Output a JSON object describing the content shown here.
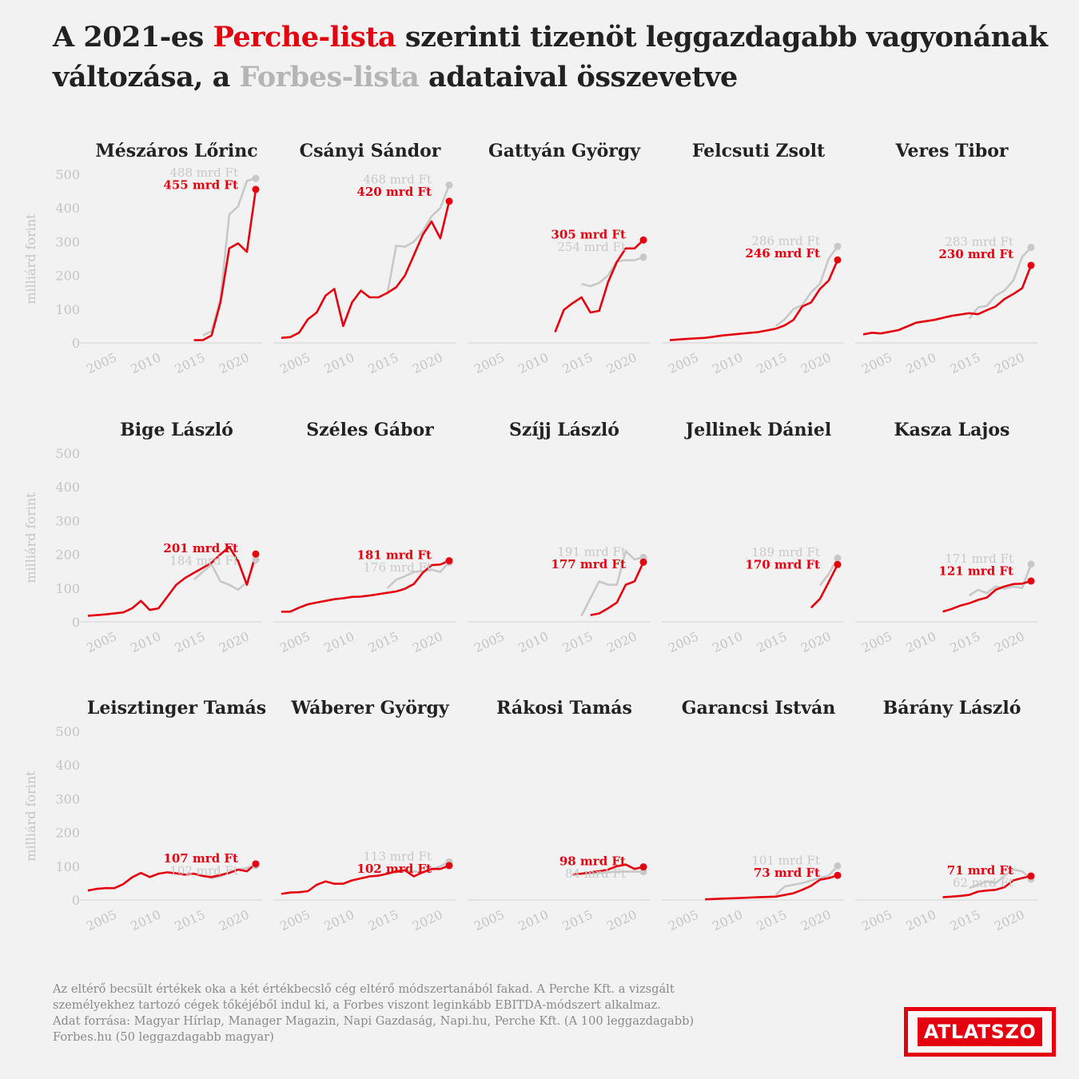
{
  "title": {
    "part1": "A 2021-es ",
    "perche": "Perche-lista",
    "part2": " szerinti tizenöt leggazdagabb vagyonának változása, a ",
    "forbes": "Forbes-lista",
    "part3": " adataival összevetve"
  },
  "colors": {
    "perche": "#e5000f",
    "forbes": "#c8c8c8",
    "axis_text": "#c4c4c4",
    "title": "#222222"
  },
  "yaxis_label": "milliárd forint",
  "yticks": [
    0,
    100,
    200,
    300,
    400,
    500
  ],
  "xticks": [
    2005,
    2010,
    2015,
    2020
  ],
  "chart_data": [
    {
      "type": "line",
      "name": "Mészáros Lőrinc",
      "perche_label": "455 mrd Ft",
      "forbes_label": "488 mrd Ft",
      "perche": [
        [
          2014,
          8
        ],
        [
          2015,
          8
        ],
        [
          2016,
          22
        ],
        [
          2017,
          120
        ],
        [
          2018,
          280
        ],
        [
          2019,
          295
        ],
        [
          2020,
          270
        ],
        [
          2021,
          455
        ]
      ],
      "forbes": [
        [
          2015,
          22
        ],
        [
          2016,
          35
        ],
        [
          2017,
          130
        ],
        [
          2018,
          380
        ],
        [
          2019,
          405
        ],
        [
          2020,
          480
        ],
        [
          2021,
          488
        ]
      ]
    },
    {
      "type": "line",
      "name": "Csányi Sándor",
      "perche_label": "420 mrd Ft",
      "forbes_label": "468 mrd Ft",
      "perche": [
        [
          2002,
          15
        ],
        [
          2003,
          17
        ],
        [
          2004,
          30
        ],
        [
          2005,
          70
        ],
        [
          2006,
          90
        ],
        [
          2007,
          140
        ],
        [
          2008,
          160
        ],
        [
          2009,
          50
        ],
        [
          2010,
          120
        ],
        [
          2011,
          155
        ],
        [
          2012,
          135
        ],
        [
          2013,
          135
        ],
        [
          2014,
          148
        ],
        [
          2015,
          165
        ],
        [
          2016,
          200
        ],
        [
          2017,
          260
        ],
        [
          2018,
          320
        ],
        [
          2019,
          360
        ],
        [
          2020,
          310
        ],
        [
          2021,
          420
        ]
      ],
      "forbes": [
        [
          2014,
          145
        ],
        [
          2015,
          288
        ],
        [
          2016,
          285
        ],
        [
          2017,
          300
        ],
        [
          2018,
          330
        ],
        [
          2019,
          375
        ],
        [
          2020,
          400
        ],
        [
          2021,
          468
        ]
      ]
    },
    {
      "type": "line",
      "name": "Gattyán György",
      "perche_label": "305 mrd Ft",
      "forbes_label": "254 mrd Ft",
      "perche": [
        [
          2011,
          32
        ],
        [
          2012,
          98
        ],
        [
          2013,
          118
        ],
        [
          2014,
          135
        ],
        [
          2015,
          90
        ],
        [
          2016,
          95
        ],
        [
          2017,
          180
        ],
        [
          2018,
          240
        ],
        [
          2019,
          280
        ],
        [
          2020,
          280
        ],
        [
          2021,
          305
        ]
      ],
      "forbes": [
        [
          2014,
          175
        ],
        [
          2015,
          168
        ],
        [
          2016,
          178
        ],
        [
          2017,
          200
        ],
        [
          2018,
          242
        ],
        [
          2019,
          245
        ],
        [
          2020,
          245
        ],
        [
          2021,
          254
        ]
      ]
    },
    {
      "type": "line",
      "name": "Felcsuti Zsolt",
      "perche_label": "246 mrd Ft",
      "forbes_label": "286 mrd Ft",
      "perche": [
        [
          2002,
          8
        ],
        [
          2004,
          12
        ],
        [
          2006,
          15
        ],
        [
          2008,
          22
        ],
        [
          2010,
          27
        ],
        [
          2012,
          32
        ],
        [
          2014,
          42
        ],
        [
          2015,
          52
        ],
        [
          2016,
          68
        ],
        [
          2017,
          108
        ],
        [
          2018,
          120
        ],
        [
          2019,
          160
        ],
        [
          2020,
          185
        ],
        [
          2021,
          246
        ]
      ],
      "forbes": [
        [
          2014,
          50
        ],
        [
          2015,
          70
        ],
        [
          2016,
          100
        ],
        [
          2017,
          112
        ],
        [
          2018,
          150
        ],
        [
          2019,
          175
        ],
        [
          2020,
          250
        ],
        [
          2021,
          286
        ]
      ]
    },
    {
      "type": "line",
      "name": "Veres Tibor",
      "perche_label": "230 mrd Ft",
      "forbes_label": "283 mrd Ft",
      "perche": [
        [
          2002,
          25
        ],
        [
          2003,
          30
        ],
        [
          2004,
          28
        ],
        [
          2006,
          38
        ],
        [
          2008,
          60
        ],
        [
          2010,
          68
        ],
        [
          2012,
          80
        ],
        [
          2014,
          88
        ],
        [
          2015,
          85
        ],
        [
          2016,
          97
        ],
        [
          2017,
          108
        ],
        [
          2018,
          130
        ],
        [
          2019,
          145
        ],
        [
          2020,
          162
        ],
        [
          2021,
          230
        ]
      ],
      "forbes": [
        [
          2014,
          72
        ],
        [
          2015,
          105
        ],
        [
          2016,
          110
        ],
        [
          2017,
          140
        ],
        [
          2018,
          155
        ],
        [
          2019,
          185
        ],
        [
          2020,
          255
        ],
        [
          2021,
          283
        ]
      ]
    },
    {
      "type": "line",
      "name": "Bige László",
      "perche_label": "201 mrd Ft",
      "forbes_label": "184 mrd Ft",
      "perche": [
        [
          2002,
          18
        ],
        [
          2004,
          22
        ],
        [
          2006,
          28
        ],
        [
          2007,
          40
        ],
        [
          2008,
          62
        ],
        [
          2009,
          35
        ],
        [
          2010,
          40
        ],
        [
          2011,
          75
        ],
        [
          2012,
          110
        ],
        [
          2013,
          130
        ],
        [
          2014,
          145
        ],
        [
          2015,
          160
        ],
        [
          2016,
          175
        ],
        [
          2017,
          200
        ],
        [
          2018,
          222
        ],
        [
          2019,
          180
        ],
        [
          2020,
          110
        ],
        [
          2021,
          201
        ]
      ],
      "forbes": [
        [
          2014,
          125
        ],
        [
          2015,
          148
        ],
        [
          2016,
          170
        ],
        [
          2017,
          120
        ],
        [
          2018,
          110
        ],
        [
          2019,
          95
        ],
        [
          2020,
          118
        ],
        [
          2021,
          184
        ]
      ]
    },
    {
      "type": "line",
      "name": "Széles Gábor",
      "perche_label": "181 mrd Ft",
      "forbes_label": "176 mrd Ft",
      "perche": [
        [
          2002,
          30
        ],
        [
          2003,
          30
        ],
        [
          2004,
          42
        ],
        [
          2005,
          52
        ],
        [
          2006,
          57
        ],
        [
          2007,
          62
        ],
        [
          2008,
          67
        ],
        [
          2009,
          70
        ],
        [
          2010,
          74
        ],
        [
          2011,
          75
        ],
        [
          2012,
          78
        ],
        [
          2013,
          82
        ],
        [
          2014,
          86
        ],
        [
          2015,
          90
        ],
        [
          2016,
          98
        ],
        [
          2017,
          112
        ],
        [
          2018,
          145
        ],
        [
          2019,
          168
        ],
        [
          2020,
          170
        ],
        [
          2021,
          181
        ]
      ],
      "forbes": [
        [
          2014,
          100
        ],
        [
          2015,
          125
        ],
        [
          2016,
          135
        ],
        [
          2017,
          148
        ],
        [
          2018,
          150
        ],
        [
          2019,
          155
        ],
        [
          2020,
          148
        ],
        [
          2021,
          176
        ]
      ]
    },
    {
      "type": "line",
      "name": "Szíjj László",
      "perche_label": "177 mrd Ft",
      "forbes_label": "191 mrd Ft",
      "perche": [
        [
          2015,
          20
        ],
        [
          2016,
          25
        ],
        [
          2017,
          40
        ],
        [
          2018,
          57
        ],
        [
          2019,
          110
        ],
        [
          2020,
          120
        ],
        [
          2021,
          177
        ]
      ],
      "forbes": [
        [
          2014,
          18
        ],
        [
          2015,
          70
        ],
        [
          2016,
          120
        ],
        [
          2017,
          110
        ],
        [
          2018,
          110
        ],
        [
          2019,
          210
        ],
        [
          2020,
          185
        ],
        [
          2021,
          191
        ]
      ]
    },
    {
      "type": "line",
      "name": "Jellinek Dániel",
      "perche_label": "170 mrd Ft",
      "forbes_label": "189 mrd Ft",
      "perche": [
        [
          2018,
          42
        ],
        [
          2019,
          68
        ],
        [
          2020,
          118
        ],
        [
          2021,
          170
        ]
      ],
      "forbes": [
        [
          2019,
          108
        ],
        [
          2020,
          142
        ],
        [
          2021,
          189
        ]
      ]
    },
    {
      "type": "line",
      "name": "Kasza Lajos",
      "perche_label": "121 mrd Ft",
      "forbes_label": "171 mrd Ft",
      "perche": [
        [
          2011,
          30
        ],
        [
          2012,
          38
        ],
        [
          2013,
          48
        ],
        [
          2014,
          55
        ],
        [
          2015,
          65
        ],
        [
          2016,
          72
        ],
        [
          2017,
          95
        ],
        [
          2018,
          105
        ],
        [
          2019,
          112
        ],
        [
          2020,
          113
        ],
        [
          2021,
          121
        ]
      ],
      "forbes": [
        [
          2014,
          78
        ],
        [
          2015,
          95
        ],
        [
          2016,
          85
        ],
        [
          2017,
          105
        ],
        [
          2018,
          98
        ],
        [
          2019,
          105
        ],
        [
          2020,
          100
        ],
        [
          2021,
          171
        ]
      ]
    },
    {
      "type": "line",
      "name": "Leisztinger Tamás",
      "perche_label": "107 mrd Ft",
      "forbes_label": "102 mrd Ft",
      "perche": [
        [
          2002,
          28
        ],
        [
          2003,
          33
        ],
        [
          2004,
          35
        ],
        [
          2005,
          35
        ],
        [
          2006,
          47
        ],
        [
          2007,
          67
        ],
        [
          2008,
          80
        ],
        [
          2009,
          68
        ],
        [
          2010,
          78
        ],
        [
          2011,
          82
        ],
        [
          2012,
          79
        ],
        [
          2013,
          75
        ],
        [
          2014,
          78
        ],
        [
          2015,
          71
        ],
        [
          2016,
          68
        ],
        [
          2017,
          74
        ],
        [
          2018,
          80
        ],
        [
          2019,
          90
        ],
        [
          2020,
          85
        ],
        [
          2021,
          107
        ]
      ],
      "forbes": [
        [
          2014,
          78
        ],
        [
          2015,
          72
        ],
        [
          2016,
          65
        ],
        [
          2017,
          70
        ],
        [
          2018,
          82
        ],
        [
          2019,
          90
        ],
        [
          2020,
          95
        ],
        [
          2021,
          102
        ]
      ]
    },
    {
      "type": "line",
      "name": "Wáberer György",
      "perche_label": "102 mrd Ft",
      "forbes_label": "113 mrd Ft",
      "perche": [
        [
          2002,
          18
        ],
        [
          2003,
          22
        ],
        [
          2004,
          23
        ],
        [
          2005,
          26
        ],
        [
          2006,
          45
        ],
        [
          2007,
          55
        ],
        [
          2008,
          48
        ],
        [
          2009,
          48
        ],
        [
          2010,
          58
        ],
        [
          2011,
          64
        ],
        [
          2012,
          70
        ],
        [
          2013,
          72
        ],
        [
          2014,
          78
        ],
        [
          2015,
          85
        ],
        [
          2016,
          88
        ],
        [
          2017,
          70
        ],
        [
          2018,
          82
        ],
        [
          2019,
          92
        ],
        [
          2020,
          92
        ],
        [
          2021,
          102
        ]
      ],
      "forbes": [
        [
          2014,
          78
        ],
        [
          2015,
          82
        ],
        [
          2016,
          88
        ],
        [
          2017,
          85
        ],
        [
          2018,
          80
        ],
        [
          2019,
          90
        ],
        [
          2020,
          100
        ],
        [
          2021,
          113
        ]
      ]
    },
    {
      "type": "line",
      "name": "Rákosi Tamás",
      "perche_label": "98 mrd Ft",
      "forbes_label": "84 mrd Ft",
      "perche": [
        [
          2013,
          75
        ],
        [
          2014,
          78
        ],
        [
          2015,
          82
        ],
        [
          2016,
          85
        ],
        [
          2017,
          90
        ],
        [
          2018,
          100
        ],
        [
          2019,
          105
        ],
        [
          2020,
          92
        ],
        [
          2021,
          98
        ]
      ],
      "forbes": [
        [
          2014,
          78
        ],
        [
          2015,
          78
        ],
        [
          2016,
          80
        ],
        [
          2017,
          82
        ],
        [
          2018,
          84
        ],
        [
          2019,
          84
        ],
        [
          2020,
          84
        ],
        [
          2021,
          84
        ]
      ]
    },
    {
      "type": "line",
      "name": "Garancsi István",
      "perche_label": "73 mrd Ft",
      "forbes_label": "101 mrd Ft",
      "perche": [
        [
          2006,
          2
        ],
        [
          2008,
          4
        ],
        [
          2010,
          6
        ],
        [
          2012,
          8
        ],
        [
          2014,
          10
        ],
        [
          2015,
          15
        ],
        [
          2016,
          20
        ],
        [
          2017,
          30
        ],
        [
          2018,
          42
        ],
        [
          2019,
          60
        ],
        [
          2020,
          65
        ],
        [
          2021,
          73
        ]
      ],
      "forbes": [
        [
          2014,
          15
        ],
        [
          2015,
          40
        ],
        [
          2016,
          45
        ],
        [
          2017,
          50
        ],
        [
          2018,
          58
        ],
        [
          2019,
          65
        ],
        [
          2020,
          72
        ],
        [
          2021,
          101
        ]
      ]
    },
    {
      "type": "line",
      "name": "Bárány László",
      "perche_label": "71 mrd Ft",
      "forbes_label": "62 mrd Ft",
      "perche": [
        [
          2011,
          8
        ],
        [
          2012,
          10
        ],
        [
          2013,
          12
        ],
        [
          2014,
          15
        ],
        [
          2015,
          25
        ],
        [
          2016,
          28
        ],
        [
          2017,
          30
        ],
        [
          2018,
          38
        ],
        [
          2019,
          58
        ],
        [
          2020,
          65
        ],
        [
          2021,
          71
        ]
      ],
      "forbes": [
        [
          2014,
          35
        ],
        [
          2015,
          45
        ],
        [
          2016,
          55
        ],
        [
          2017,
          50
        ],
        [
          2018,
          72
        ],
        [
          2019,
          90
        ],
        [
          2020,
          85
        ],
        [
          2021,
          62
        ]
      ]
    }
  ],
  "footnote": [
    "Az eltérő becsült értékek oka a két értékbecslő cég eltérő módszertanából fakad. A Perche Kft. a vizsgált",
    "személyekhez tartozó cégek tőkéjéből indul ki, a Forbes viszont leginkább EBITDA-módszert alkalmaz.",
    "Adat forrása: Magyar Hírlap, Manager Magazin, Napi Gazdaság, Napi.hu, Perche Kft. (A 100 leggazdagabb)",
    "Forbes.hu (50 leggazdagabb magyar)"
  ],
  "logo": "ATLATSZO"
}
